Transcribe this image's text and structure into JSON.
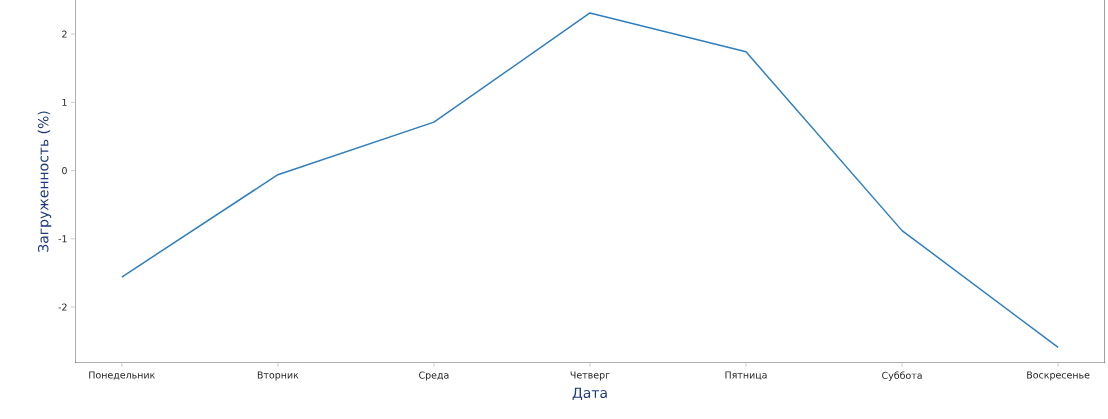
{
  "chart_data": {
    "type": "line",
    "xlabel": "Дата",
    "ylabel": "Загруженность (%)",
    "categories": [
      "Понедельник",
      "Вторник",
      "Среда",
      "Четверг",
      "Пятница",
      "Суббота",
      "Воскресенье"
    ],
    "series": [
      {
        "color": "#2f7ebc",
        "values": [
          -1.56,
          -0.06,
          0.71,
          2.31,
          1.74,
          -0.88,
          -2.59
        ]
      }
    ],
    "ylim": [
      -2.82,
      2.5
    ],
    "yticks": [
      -2,
      -1,
      0,
      1,
      2
    ],
    "marker": "none",
    "line_style": "solid"
  }
}
